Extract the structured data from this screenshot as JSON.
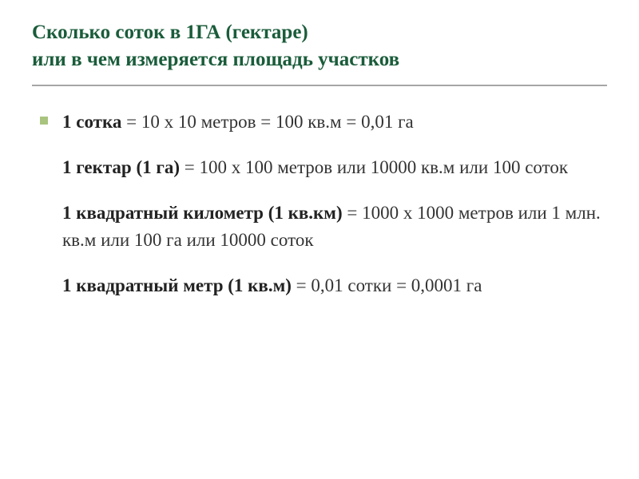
{
  "title": {
    "line1": "Сколько соток в 1ГА (гектаре)",
    "line2": "или в чем измеряется площадь участков"
  },
  "rows": [
    {
      "bold": "1 сотка",
      "rest": " = 10 х 10 метров = 100 кв.м = 0,01 га"
    },
    {
      "bold": "1 гектар (1 га)",
      "rest": " = 100 х 100 метров или 10000 кв.м или 100 соток"
    },
    {
      "bold": "1 квадратный километр (1 кв.км)",
      "rest": " = 1000 х 1000 метров или 1 млн. кв.м или 100 га или 10000 соток"
    },
    {
      "bold": "1 квадратный метр (1 кв.м)",
      "rest": " = 0,01 сотки = 0,0001 га"
    }
  ],
  "colors": {
    "title": "#1a5c3a",
    "underline": "#a6a6a6",
    "bullet": "#a9c47f",
    "body": "#333333",
    "background": "#ffffff"
  },
  "typography": {
    "title_fontsize": 25,
    "body_fontsize": 23,
    "font_family": "Georgia / Times New Roman (serif)"
  }
}
